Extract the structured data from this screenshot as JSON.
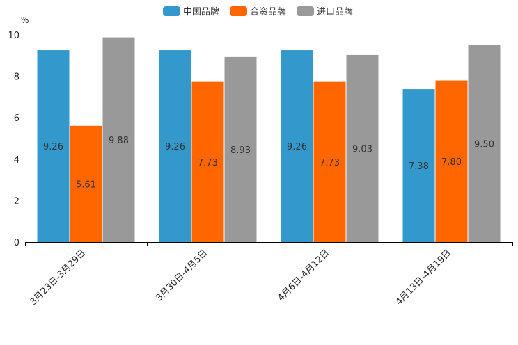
{
  "chart_data": {
    "type": "bar",
    "y_unit": "%",
    "ylim": [
      0,
      10
    ],
    "yticks": [
      0,
      2,
      4,
      6,
      8,
      10
    ],
    "legend_position": "top",
    "categories": [
      "3月23日-3月29日",
      "3月30日-4月5日",
      "4月6日-4月12日",
      "4月13日-4月19日"
    ],
    "series": [
      {
        "name": "中国品牌",
        "color": "#3399cc",
        "values": [
          9.26,
          9.26,
          9.26,
          7.38
        ],
        "labels": [
          "9.26",
          "9.26",
          "9.26",
          "7.38"
        ]
      },
      {
        "name": "合资品牌",
        "color": "#ff6600",
        "values": [
          5.61,
          7.73,
          7.73,
          7.8
        ],
        "labels": [
          "5.61",
          "7.73",
          "7.73",
          "7.80"
        ]
      },
      {
        "name": "进口品牌",
        "color": "#999999",
        "values": [
          9.88,
          8.93,
          9.03,
          9.5
        ],
        "labels": [
          "9.88",
          "8.93",
          "9.03",
          "9.50"
        ]
      }
    ]
  }
}
